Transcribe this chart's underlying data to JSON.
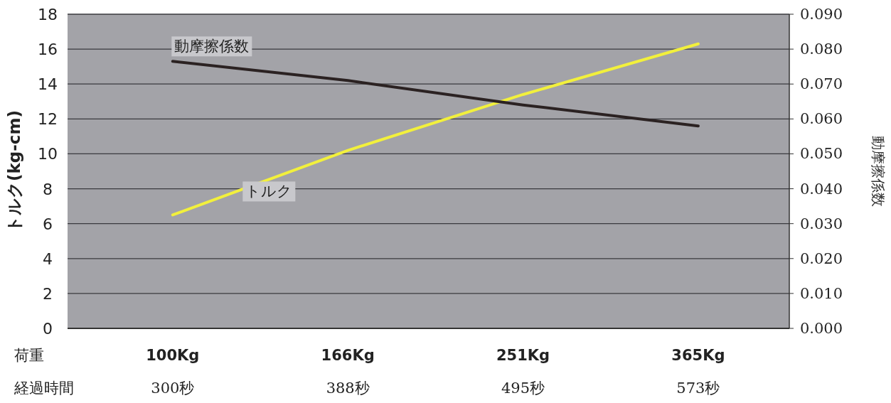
{
  "chart_data": {
    "type": "line",
    "ylabel": "トルク(kg-cm)",
    "y2label": "動摩擦係数",
    "categories": [
      "100Kg",
      "166Kg",
      "251Kg",
      "365Kg"
    ],
    "series": [
      {
        "name": "トルク",
        "color": "#f2f03c",
        "values": [
          6.5,
          10.2,
          13.4,
          16.3
        ]
      },
      {
        "name": "動摩擦係数",
        "color": "#2b2222",
        "axis": "y2",
        "values": [
          0.0765,
          0.071,
          0.064,
          0.058
        ]
      }
    ],
    "ylim": [
      0,
      18
    ],
    "yticks": [
      0,
      2,
      4,
      6,
      8,
      10,
      12,
      14,
      16,
      18
    ],
    "y2lim": [
      0,
      0.09
    ],
    "y2ticks": [
      {
        "value": 0,
        "label": "0.000"
      },
      {
        "value": 0.01,
        "label": "0.010"
      },
      {
        "value": 0.02,
        "label": "0.020"
      },
      {
        "value": 0.03,
        "label": "0.030"
      },
      {
        "value": 0.04,
        "label": "0.040"
      },
      {
        "value": 0.05,
        "label": "0.050"
      },
      {
        "value": 0.06,
        "label": "0.060"
      },
      {
        "value": 0.07,
        "label": "0.070"
      },
      {
        "value": 0.08,
        "label": "0.080"
      },
      {
        "value": 0.09,
        "label": "0.090"
      }
    ],
    "grid": "y",
    "marker": "none",
    "line_style": "solid",
    "annotations": [
      "荷重",
      "経過時間",
      "300秒",
      "388秒",
      "495秒",
      "573秒"
    ]
  }
}
